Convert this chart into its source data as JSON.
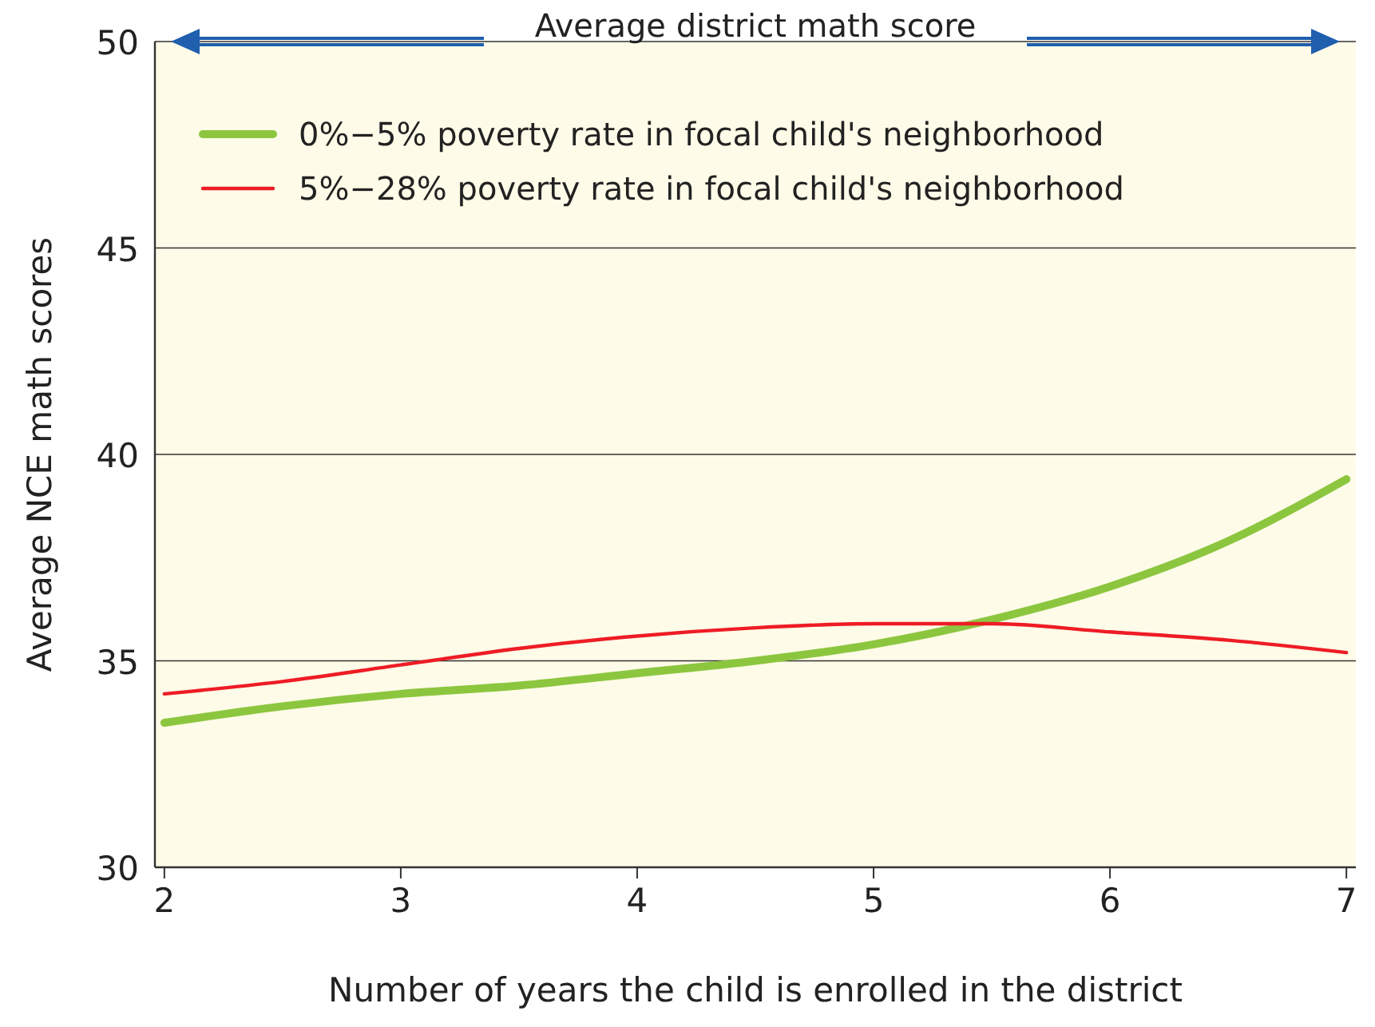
{
  "chart_data": {
    "type": "line",
    "xlabel": "Number of years the child is enrolled in the district",
    "ylabel": "Average NCE math scores",
    "xlim": [
      1.96,
      7.04
    ],
    "xticks": [
      2,
      3,
      4,
      5,
      6,
      7
    ],
    "ylim": [
      30,
      50
    ],
    "yticks": [
      30,
      35,
      40,
      45,
      50
    ],
    "grid": "y",
    "legend": "top left",
    "marker": "none",
    "line_style": "solid",
    "ref_lines": [
      {
        "axis": "y",
        "value": 50,
        "label": "Average district math score",
        "color": "#1f5fae"
      }
    ],
    "series": [
      {
        "name": "0%−5% poverty rate in focal child's neighborhood",
        "color": "#8cc63f",
        "x": [
          2,
          2.5,
          3,
          3.5,
          4,
          4.5,
          5,
          5.5,
          6,
          6.5,
          7
        ],
        "values": [
          33.5,
          33.9,
          34.2,
          34.4,
          34.7,
          35.0,
          35.4,
          36.0,
          36.8,
          37.9,
          39.4
        ]
      },
      {
        "name": "5%−28% poverty rate in focal child's neighborhood",
        "color": "#ee1c25",
        "x": [
          2,
          2.5,
          3,
          3.5,
          4,
          4.5,
          5,
          5.5,
          6,
          6.5,
          7
        ],
        "values": [
          34.2,
          34.5,
          34.9,
          35.3,
          35.6,
          35.8,
          35.9,
          35.9,
          35.7,
          35.5,
          35.2
        ]
      }
    ]
  }
}
